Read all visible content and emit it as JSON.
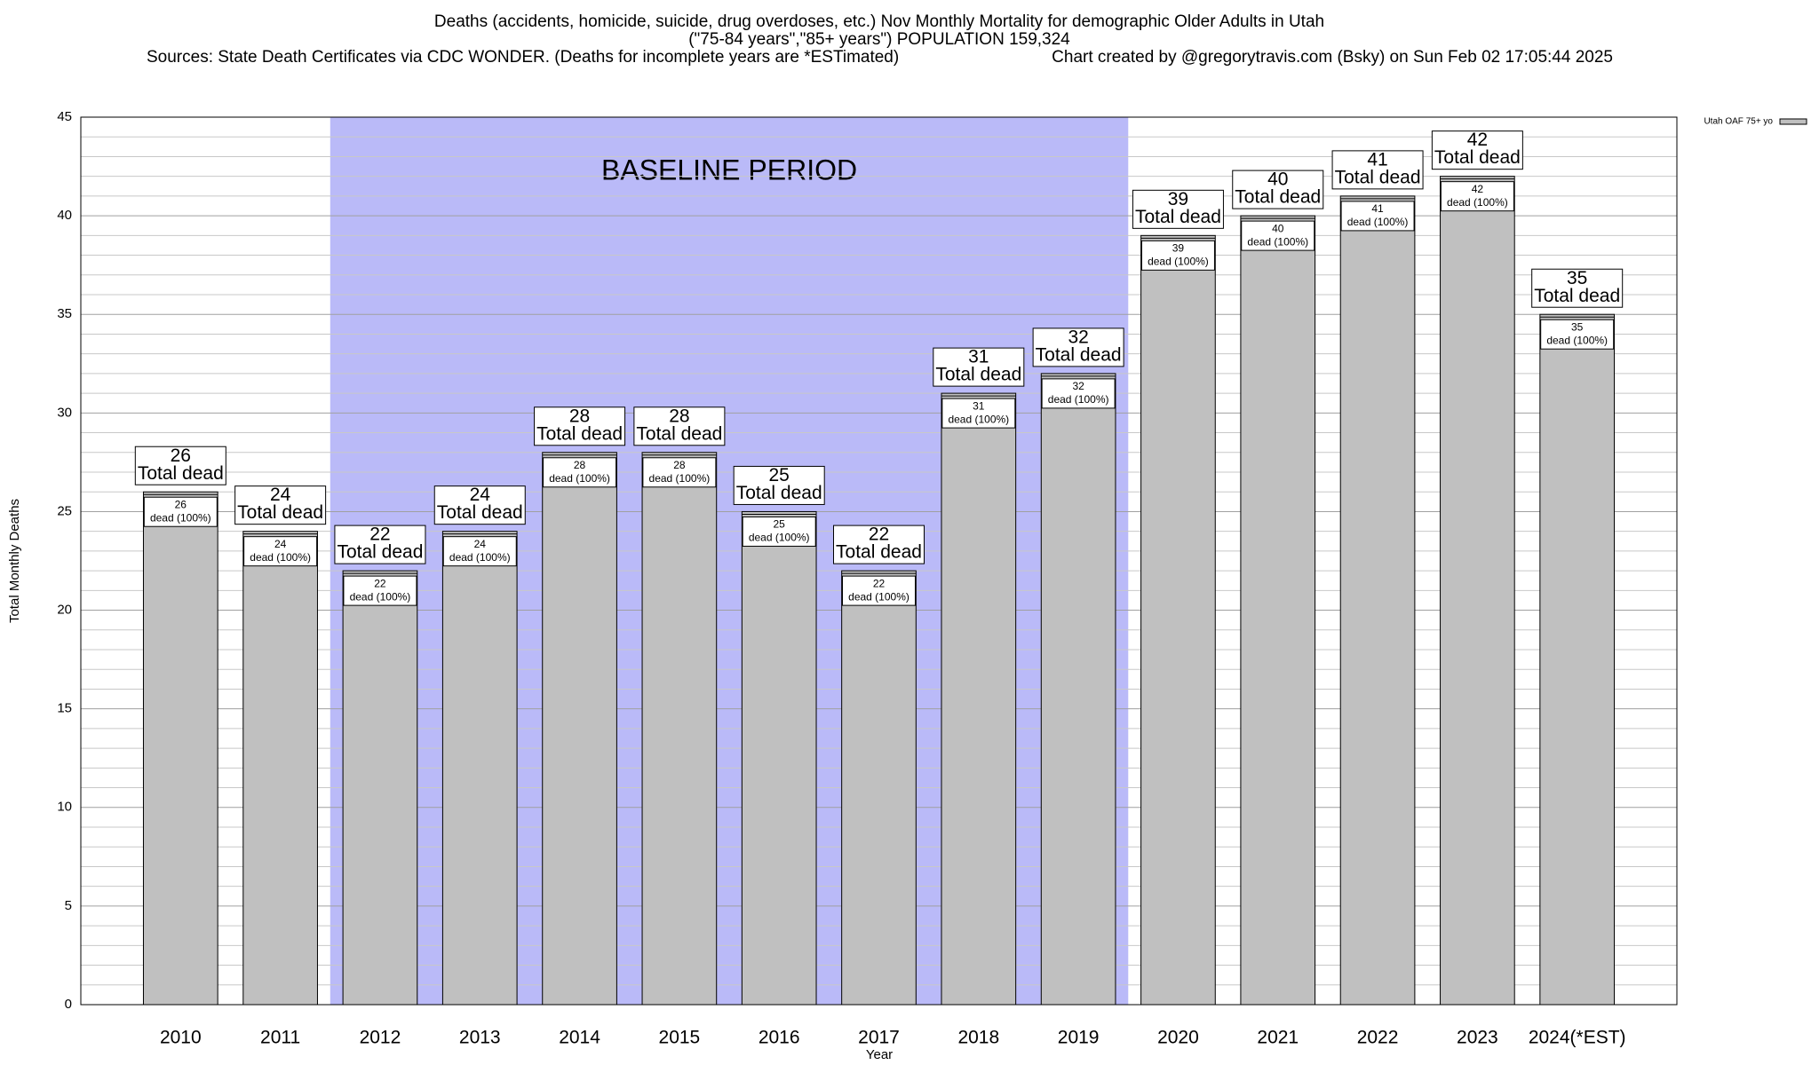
{
  "chart_data": {
    "type": "bar",
    "title": "Deaths (accidents, homicide, suicide, drug overdoses, etc.) Nov Monthly Mortality for demographic Older Adults in Utah",
    "subtitle": "(\"75-84 years\",\"85+ years\") POPULATION 159,324",
    "source": "Sources: State Death Certificates via CDC WONDER. (Deaths for incomplete years are *ESTimated)",
    "credit": "Chart created by @gregorytravis.com (Bsky) on Sun Feb 02 17:05:44 2025",
    "x_label": "Year",
    "y_label": "Total Monthly Deaths",
    "categories": [
      "2010",
      "2011",
      "2012",
      "2013",
      "2014",
      "2015",
      "2016",
      "2017",
      "2018",
      "2019",
      "2020",
      "2021",
      "2022",
      "2023",
      "2024(*EST)"
    ],
    "series": [
      {
        "name": "Utah OAF 75+ yo",
        "color": "#c0c0c0",
        "values": [
          26,
          24,
          22,
          24,
          28,
          28,
          25,
          22,
          31,
          32,
          39,
          40,
          41,
          42,
          35
        ]
      }
    ],
    "total_label": "Total dead",
    "share_label": "dead (100%)",
    "shade": {
      "label": "BASELINE PERIOD",
      "from": "2012",
      "to": "2019",
      "color": "#babaf8"
    },
    "ylim": [
      0,
      45
    ],
    "yticks": [
      0,
      5,
      10,
      15,
      20,
      25,
      30,
      35,
      40,
      45
    ],
    "grid": true,
    "minor_grid": true,
    "legend": "top-right"
  }
}
